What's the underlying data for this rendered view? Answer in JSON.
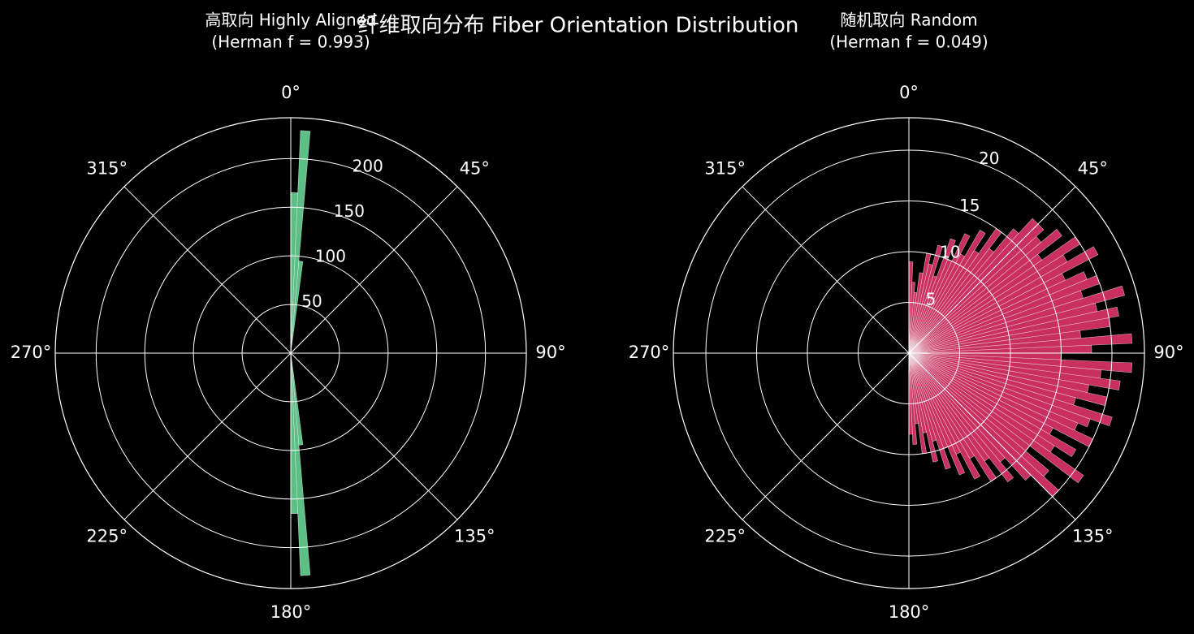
{
  "title": "纤维取向分布 Fiber Orientation Distribution",
  "chart_data": [
    {
      "type": "polar-bar",
      "title": [
        "高取向 Highly Aligned",
        "(Herman f = 0.993)"
      ],
      "color": "#5cbf86",
      "x": [
        1.25,
        3.75,
        6.25,
        8.75,
        11.25,
        13.75,
        16.25,
        18.75,
        21.25,
        23.75,
        26.25,
        28.75,
        31.25,
        33.75,
        36.25,
        38.75,
        41.25,
        43.75,
        46.25,
        48.75,
        51.25,
        53.75,
        56.25,
        58.75,
        61.25,
        63.75,
        66.25,
        68.75,
        71.25,
        73.75,
        76.25,
        78.75,
        81.25,
        83.75,
        86.25,
        88.75,
        91.25,
        93.75,
        96.25,
        98.75,
        101.25,
        103.75,
        106.25,
        108.75,
        111.25,
        113.75,
        116.25,
        118.75,
        121.25,
        123.75,
        126.25,
        128.75,
        131.25,
        133.75,
        136.25,
        138.75,
        141.25,
        143.75,
        146.25,
        148.75,
        151.25,
        153.75,
        156.25,
        158.75,
        161.25,
        163.75,
        166.25,
        168.75,
        171.25,
        173.75,
        176.25,
        178.75
      ],
      "values": [
        165,
        229,
        95,
        3,
        0,
        0,
        0,
        0,
        0,
        0,
        0,
        0,
        0,
        0,
        0,
        0,
        0,
        0,
        0,
        0,
        0,
        0,
        0,
        0,
        0,
        0,
        0,
        0,
        0,
        0,
        0,
        0,
        0,
        0,
        0,
        0,
        0,
        0,
        0,
        0,
        0,
        0,
        0,
        0,
        0,
        0,
        0,
        0,
        0,
        0,
        0,
        0,
        0,
        0,
        0,
        0,
        0,
        0,
        0,
        0,
        0,
        0,
        0,
        0,
        0,
        0,
        0,
        0,
        3,
        95,
        229,
        165
      ],
      "ylim": [
        0,
        242
      ],
      "yticks": [
        50,
        100,
        150,
        200
      ],
      "xticks": [
        {
          "value": 0,
          "label": "0°"
        },
        {
          "value": 45,
          "label": "45°"
        },
        {
          "value": 90,
          "label": "90°"
        },
        {
          "value": 135,
          "label": "135°"
        },
        {
          "value": 180,
          "label": "180°"
        },
        {
          "value": 225,
          "label": "225°"
        },
        {
          "value": 270,
          "label": "270°"
        },
        {
          "value": 315,
          "label": "315°"
        }
      ]
    },
    {
      "type": "polar-bar",
      "title": [
        "随机取向 Random",
        "(Herman f = 0.049)"
      ],
      "color": "#c9305f",
      "x": [
        1.25,
        3.75,
        6.25,
        8.75,
        11.25,
        13.75,
        16.25,
        18.75,
        21.25,
        23.75,
        26.25,
        28.75,
        31.25,
        33.75,
        36.25,
        38.75,
        41.25,
        43.75,
        46.25,
        48.75,
        51.25,
        53.75,
        56.25,
        58.75,
        61.25,
        63.75,
        66.25,
        68.75,
        71.25,
        73.75,
        76.25,
        78.75,
        81.25,
        83.75,
        86.25,
        88.75,
        91.25,
        93.75,
        96.25,
        98.75,
        101.25,
        103.75,
        106.25,
        108.75,
        111.25,
        113.75,
        116.25,
        118.75,
        121.25,
        123.75,
        126.25,
        128.75,
        131.25,
        133.75,
        136.25,
        138.75,
        141.25,
        143.75,
        146.25,
        148.75,
        151.25,
        153.75,
        156.25,
        158.75,
        161.25,
        163.75,
        166.25,
        168.75,
        171.25,
        173.75,
        176.25,
        178.75
      ],
      "values": [
        9,
        7,
        6,
        8,
        10,
        9,
        11,
        8,
        12,
        10,
        13,
        11,
        14,
        12,
        15,
        13,
        16,
        18,
        18,
        17,
        19,
        16,
        20,
        18,
        21,
        17,
        19,
        20,
        18,
        22,
        19,
        21,
        20,
        17,
        22,
        18,
        15,
        22,
        19,
        21,
        18,
        20,
        17,
        21,
        19,
        18,
        20,
        16,
        19,
        17,
        21,
        15,
        18,
        20,
        17,
        14,
        16,
        13,
        15,
        12,
        14,
        11,
        13,
        10,
        12,
        9,
        11,
        8,
        10,
        7,
        9,
        8
      ],
      "ylim": [
        0,
        23.2
      ],
      "yticks": [
        5,
        10,
        15,
        20
      ],
      "xticks": [
        {
          "value": 0,
          "label": "0°"
        },
        {
          "value": 45,
          "label": "45°"
        },
        {
          "value": 90,
          "label": "90°"
        },
        {
          "value": 135,
          "label": "135°"
        },
        {
          "value": 180,
          "label": "180°"
        },
        {
          "value": 225,
          "label": "225°"
        },
        {
          "value": 270,
          "label": "270°"
        },
        {
          "value": 315,
          "label": "315°"
        }
      ]
    }
  ]
}
